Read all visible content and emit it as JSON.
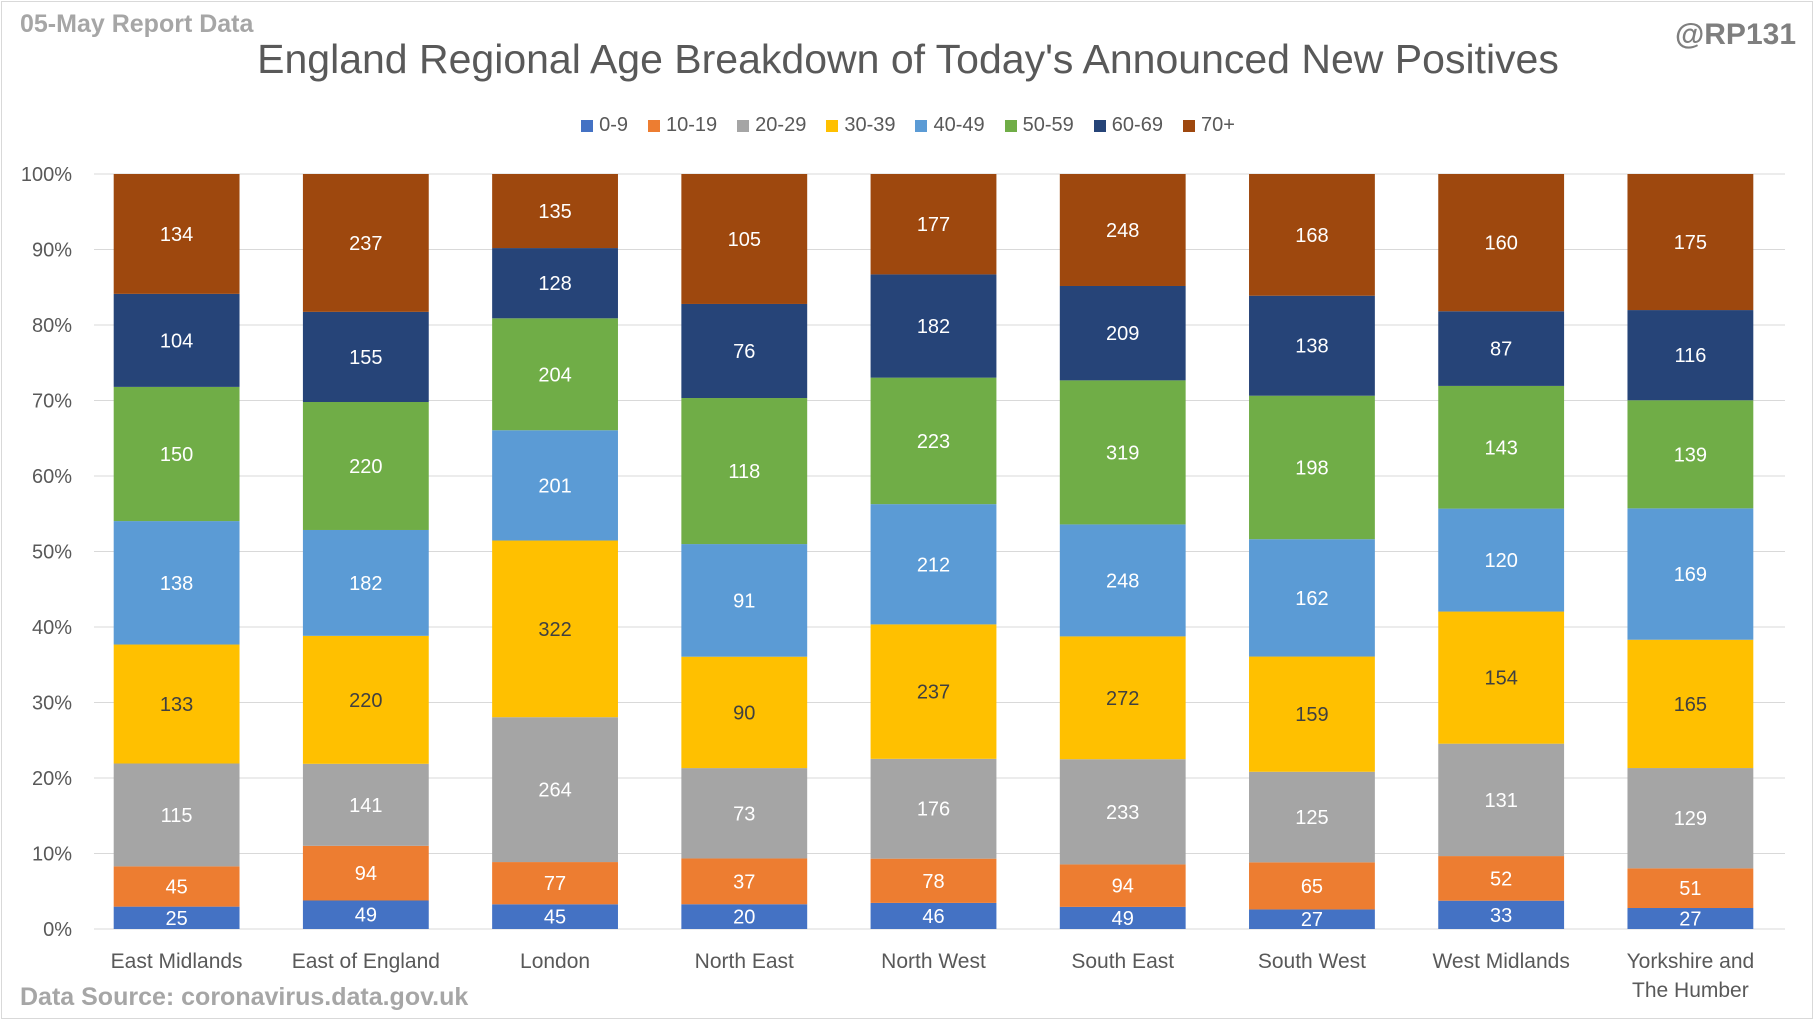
{
  "header": {
    "report_label": "05-May Report Data",
    "handle": "@RP131",
    "source": "Data Source: coronavirus.data.gov.uk"
  },
  "chart_data": {
    "type": "bar",
    "stacked": true,
    "normalized": true,
    "title": "England Regional Age Breakdown of Today's Announced New Positives",
    "xlabel": "",
    "ylabel": "",
    "ylim": [
      0,
      100
    ],
    "y_ticks": [
      "0%",
      "10%",
      "20%",
      "30%",
      "40%",
      "50%",
      "60%",
      "70%",
      "80%",
      "90%",
      "100%"
    ],
    "grid": true,
    "legend_position": "top",
    "categories": [
      "East Midlands",
      "East of England",
      "London",
      "North East",
      "North West",
      "South East",
      "South West",
      "West Midlands",
      "Yorkshire and The Humber"
    ],
    "series": [
      {
        "name": "0-9",
        "color": "#4472c4",
        "label_color": "#ffffff",
        "values": [
          25,
          49,
          45,
          20,
          46,
          49,
          27,
          33,
          27
        ]
      },
      {
        "name": "10-19",
        "color": "#ed7d31",
        "label_color": "#ffffff",
        "values": [
          45,
          94,
          77,
          37,
          78,
          94,
          65,
          52,
          51
        ]
      },
      {
        "name": "20-29",
        "color": "#a5a5a5",
        "label_color": "#ffffff",
        "values": [
          115,
          141,
          264,
          73,
          176,
          233,
          125,
          131,
          129
        ]
      },
      {
        "name": "30-39",
        "color": "#ffc000",
        "label_color": "#404040",
        "values": [
          133,
          220,
          322,
          90,
          237,
          272,
          159,
          154,
          165
        ]
      },
      {
        "name": "40-49",
        "color": "#5b9bd5",
        "label_color": "#ffffff",
        "values": [
          138,
          182,
          201,
          91,
          212,
          248,
          162,
          120,
          169
        ]
      },
      {
        "name": "50-59",
        "color": "#70ad47",
        "label_color": "#ffffff",
        "values": [
          150,
          220,
          204,
          118,
          223,
          319,
          198,
          143,
          139
        ]
      },
      {
        "name": "60-69",
        "color": "#264478",
        "label_color": "#ffffff",
        "values": [
          104,
          155,
          128,
          76,
          182,
          209,
          138,
          87,
          116
        ]
      },
      {
        "name": "70+",
        "color": "#9e480e",
        "label_color": "#ffffff",
        "values": [
          134,
          237,
          135,
          105,
          177,
          248,
          168,
          160,
          175
        ]
      }
    ]
  }
}
